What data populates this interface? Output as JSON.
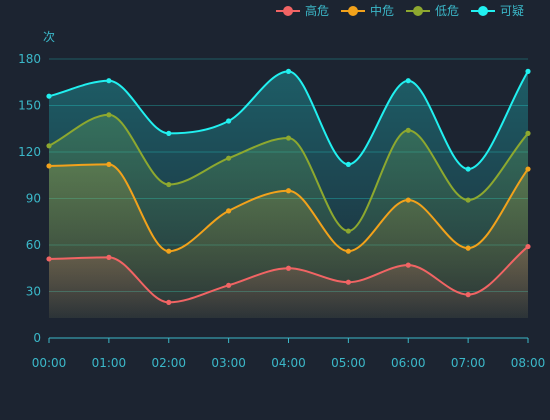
{
  "chart_data": {
    "type": "line",
    "smooth": true,
    "area": true,
    "unit": "次",
    "x": [
      "00:00",
      "01:00",
      "02:00",
      "03:00",
      "04:00",
      "05:00",
      "06:00",
      "07:00",
      "08:00"
    ],
    "ylim": [
      0,
      180
    ],
    "yticks": [
      0,
      30,
      60,
      90,
      120,
      150,
      180
    ],
    "grid": true,
    "legend_position": "top-right",
    "series": [
      {
        "name": "高危",
        "color": "#f16464",
        "values": [
          51,
          52,
          23,
          34,
          45,
          36,
          47,
          28,
          59
        ]
      },
      {
        "name": "中危",
        "color": "#f2a21b",
        "values": [
          111,
          112,
          56,
          82,
          95,
          56,
          89,
          58,
          109
        ]
      },
      {
        "name": "低危",
        "color": "#8da82f",
        "values": [
          124,
          144,
          99,
          116,
          129,
          69,
          134,
          89,
          132
        ]
      },
      {
        "name": "可疑",
        "color": "#21f0f0",
        "values": [
          156,
          166,
          132,
          140,
          172,
          112,
          166,
          109,
          172
        ]
      }
    ]
  }
}
